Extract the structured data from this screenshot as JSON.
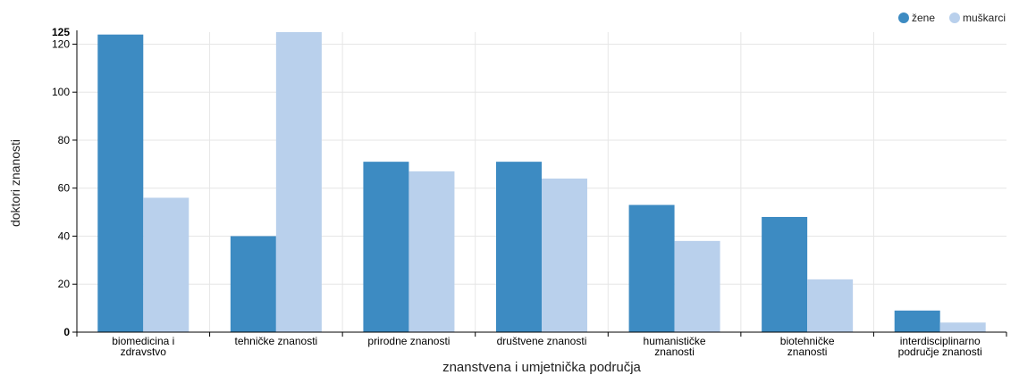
{
  "chart_data": {
    "type": "bar",
    "xlabel": "znanstvena i umjetnička područja",
    "ylabel": "doktori znanosti",
    "ylim": [
      0,
      125
    ],
    "yticks": [
      0,
      20,
      40,
      60,
      80,
      100,
      120
    ],
    "ymax_label": "125",
    "grid": true,
    "legend_position": "top-right",
    "categories": [
      [
        "biomedicina i",
        "zdravstvo"
      ],
      [
        "tehničke znanosti"
      ],
      [
        "prirodne znanosti"
      ],
      [
        "društvene znanosti"
      ],
      [
        "humanističke",
        "znanosti"
      ],
      [
        "biotehničke",
        "znanosti"
      ],
      [
        "interdisciplinarno",
        "područje znanosti"
      ]
    ],
    "series": [
      {
        "name": "žene",
        "color": "#3d8bc2",
        "values": [
          124,
          40,
          71,
          71,
          53,
          48,
          9
        ]
      },
      {
        "name": "muškarci",
        "color": "#b9d0ec",
        "values": [
          56,
          125,
          67,
          64,
          38,
          22,
          4
        ]
      }
    ]
  }
}
